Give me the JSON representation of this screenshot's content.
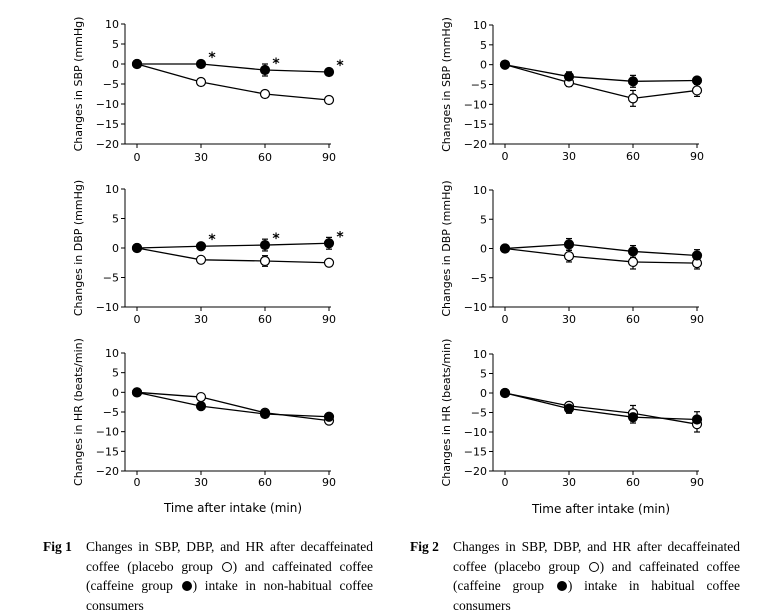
{
  "chart_data": [
    {
      "type": "line",
      "figure": "1",
      "panel": "SBP",
      "ylabel": "Changes in SBP (mmHg)",
      "x": [
        0,
        30,
        60,
        90
      ],
      "xticks": [
        "0",
        "30",
        "60",
        "90"
      ],
      "ylim": [
        -20,
        10
      ],
      "yticks": [
        "10",
        "5",
        "0",
        "-5",
        "-10",
        "-15",
        "-20"
      ],
      "series": [
        {
          "marker": "open",
          "values": [
            0,
            -4.5,
            -7.5,
            -9
          ],
          "errors": [
            0,
            0,
            0,
            0
          ]
        },
        {
          "marker": "filled",
          "values": [
            0,
            0,
            -1.5,
            -2
          ],
          "errors": [
            0,
            0,
            1.5,
            0
          ]
        }
      ],
      "annotations": [
        {
          "x": 30,
          "text": "*"
        },
        {
          "x": 60,
          "text": "*"
        },
        {
          "x": 90,
          "text": "*"
        }
      ]
    },
    {
      "type": "line",
      "figure": "1",
      "panel": "DBP",
      "ylabel": "Changes in DBP (mmHg)",
      "x": [
        0,
        30,
        60,
        90
      ],
      "xticks": [
        "0",
        "30",
        "60",
        "90"
      ],
      "ylim": [
        -10,
        10
      ],
      "yticks": [
        "10",
        "5",
        "0",
        "-5",
        "-10"
      ],
      "series": [
        {
          "marker": "open",
          "values": [
            0,
            -2,
            -2.2,
            -2.5
          ],
          "errors": [
            0,
            0,
            0.9,
            0
          ]
        },
        {
          "marker": "filled",
          "values": [
            0,
            0.3,
            0.5,
            0.8
          ],
          "errors": [
            0,
            0,
            1,
            1
          ]
        }
      ],
      "annotations": [
        {
          "x": 30,
          "text": "*"
        },
        {
          "x": 60,
          "text": "*"
        },
        {
          "x": 90,
          "text": "*"
        }
      ]
    },
    {
      "type": "line",
      "figure": "1",
      "panel": "HR",
      "ylabel": "Changes in HR (beats/min)",
      "x": [
        0,
        30,
        60,
        90
      ],
      "xticks": [
        "0",
        "30",
        "60",
        "90"
      ],
      "ylim": [
        -20,
        10
      ],
      "yticks": [
        "10",
        "5",
        "0",
        "-5",
        "-10",
        "-15",
        "-20"
      ],
      "xlabel": "Time after intake (min)",
      "series": [
        {
          "marker": "open",
          "values": [
            0,
            -1.2,
            -5.2,
            -7.2
          ],
          "errors": [
            0,
            0,
            0,
            0
          ]
        },
        {
          "marker": "filled",
          "values": [
            0,
            -3.5,
            -5.5,
            -6.2
          ],
          "errors": [
            0,
            0,
            0,
            0
          ]
        }
      ],
      "annotations": []
    },
    {
      "type": "line",
      "figure": "2",
      "panel": "SBP",
      "ylabel": "Changes in SBP (mmHg)",
      "x": [
        0,
        30,
        60,
        90
      ],
      "xticks": [
        "0",
        "30",
        "60",
        "90"
      ],
      "ylim": [
        -20,
        10
      ],
      "yticks": [
        "10",
        "5",
        "0",
        "-5",
        "-10",
        "-15",
        "-20"
      ],
      "series": [
        {
          "marker": "open",
          "values": [
            0,
            -4.5,
            -8.5,
            -6.5
          ],
          "errors": [
            0,
            1,
            2,
            1.5
          ]
        },
        {
          "marker": "filled",
          "values": [
            0,
            -3,
            -4.2,
            -4
          ],
          "errors": [
            0,
            1.2,
            1.5,
            0
          ]
        }
      ],
      "annotations": []
    },
    {
      "type": "line",
      "figure": "2",
      "panel": "DBP",
      "ylabel": "Changes in DBP (mmHg)",
      "x": [
        0,
        30,
        60,
        90
      ],
      "xticks": [
        "0",
        "30",
        "60",
        "90"
      ],
      "ylim": [
        -10,
        10
      ],
      "yticks": [
        "10",
        "5",
        "0",
        "-5",
        "-10"
      ],
      "series": [
        {
          "marker": "open",
          "values": [
            0,
            -1.3,
            -2.3,
            -2.5
          ],
          "errors": [
            0,
            1,
            1.2,
            1
          ]
        },
        {
          "marker": "filled",
          "values": [
            0,
            0.7,
            -0.5,
            -1.2
          ],
          "errors": [
            0,
            1,
            1,
            1
          ]
        }
      ],
      "annotations": []
    },
    {
      "type": "line",
      "figure": "2",
      "panel": "HR",
      "ylabel": "Changes in HR (beats/min)",
      "x": [
        0,
        30,
        60,
        90
      ],
      "xticks": [
        "0",
        "30",
        "60",
        "90"
      ],
      "ylim": [
        -20,
        10
      ],
      "yticks": [
        "10",
        "5",
        "0",
        "-5",
        "-10",
        "-15",
        "-20"
      ],
      "xlabel": "Time after intake (min)",
      "series": [
        {
          "marker": "open",
          "values": [
            0,
            -3.3,
            -5.2,
            -8
          ],
          "errors": [
            0,
            0,
            2,
            2
          ]
        },
        {
          "marker": "filled",
          "values": [
            0,
            -4,
            -6.2,
            -6.8
          ],
          "errors": [
            0,
            1.2,
            1.5,
            2
          ]
        }
      ],
      "annotations": []
    }
  ],
  "captions": [
    {
      "label": "Fig 1",
      "lines": [
        [
          "Changes in SBP, DBP, and HR after decaffeinated"
        ],
        [
          "coffee (placebo group ",
          "open",
          ") and caffeinated coffee"
        ],
        [
          "(caffeine group ",
          "filled",
          ") intake in non-habitual coffee"
        ],
        [
          "consumers"
        ]
      ]
    },
    {
      "label": "Fig 2",
      "lines": [
        [
          "Changes in SBP, DBP, and HR after decaffeinated"
        ],
        [
          "coffee (placebo group ",
          "open",
          ") and caffeinated coffee"
        ],
        [
          "(caffeine group ",
          "filled",
          ") intake in habitual coffee"
        ],
        [
          "consumers"
        ]
      ]
    }
  ]
}
